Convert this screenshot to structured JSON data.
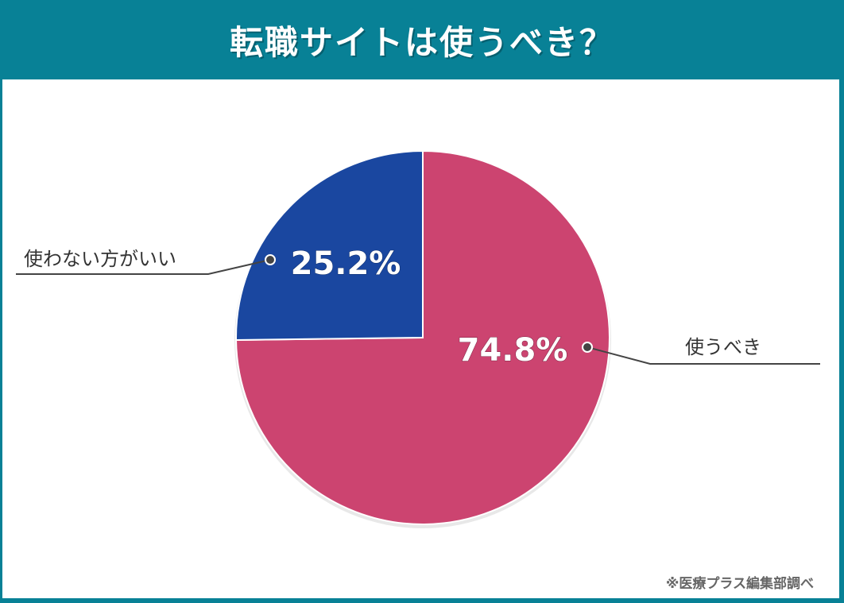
{
  "title": "転職サイトは使うべき？",
  "source_note": "※医療プラス編集部調べ",
  "chart_data": {
    "type": "pie",
    "title": "転職サイトは使うべき？",
    "slices": [
      {
        "label": "使うべき",
        "value": 74.8,
        "value_label": "74.8%",
        "color": "#cc4470"
      },
      {
        "label": "使わない方がいい",
        "value": 25.2,
        "value_label": "25.2%",
        "color": "#1a47a0"
      }
    ],
    "start": "top",
    "direction": "clockwise",
    "legend": "leader-line labels"
  }
}
